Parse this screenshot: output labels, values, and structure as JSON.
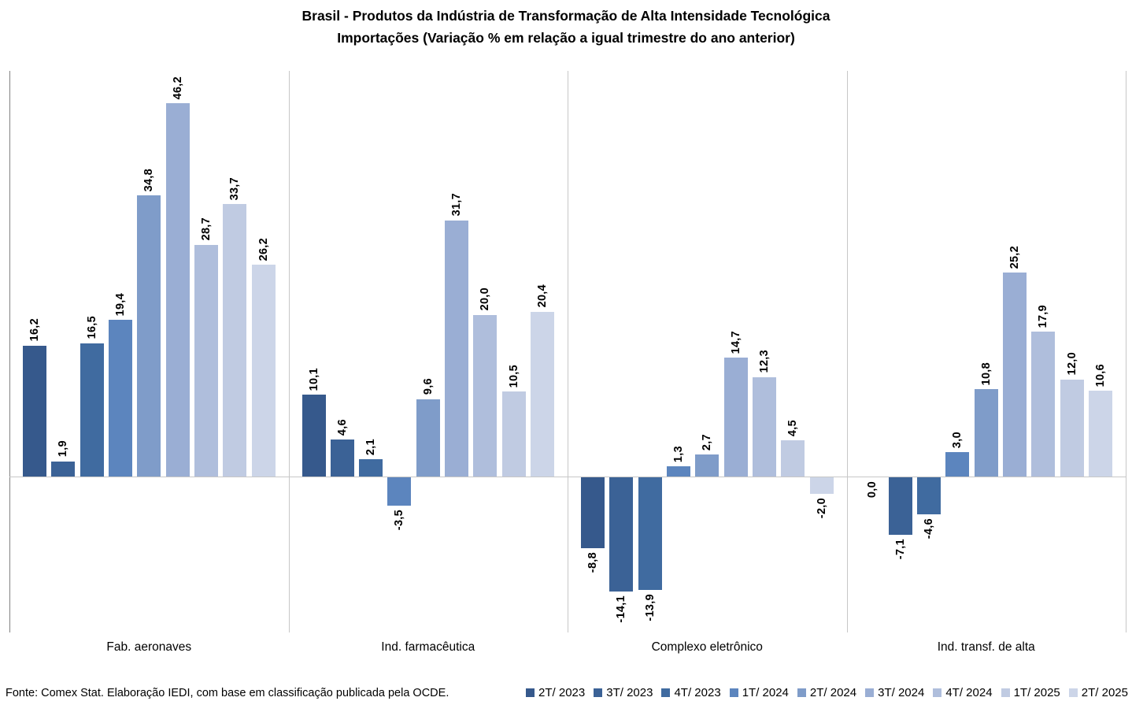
{
  "title": {
    "line1": "Brasil - Produtos da Indústria de Transformação de Alta Intensidade Tecnológica",
    "line2": "Importações (Variação % em relação a igual trimestre do ano anterior)"
  },
  "footer": {
    "source": "Fonte: Comex Stat. Elaboração IEDI, com base em classificação publicada pela OCDE."
  },
  "chart_data": {
    "type": "bar",
    "title": "Brasil - Produtos da Indústria de Transformação de Alta Intensidade Tecnológica",
    "subtitle": "Importações (Variação % em relação a igual trimestre do ano anterior)",
    "categories": [
      "Fab. aeronaves",
      "Ind. farmacêutica",
      "Complexo eletrônico",
      "Ind. transf. de alta"
    ],
    "series": [
      {
        "name": "2T/ 2023",
        "color": "#36598C",
        "values": [
          16.2,
          10.1,
          -8.8,
          0.0
        ]
      },
      {
        "name": "3T/ 2023",
        "color": "#3B6296",
        "values": [
          1.9,
          4.6,
          -14.1,
          -7.1
        ]
      },
      {
        "name": "4T/ 2023",
        "color": "#406BA0",
        "values": [
          16.5,
          2.1,
          -13.9,
          -4.6
        ]
      },
      {
        "name": "1T/ 2024",
        "color": "#5C85BE",
        "values": [
          19.4,
          -3.5,
          1.3,
          3.0
        ]
      },
      {
        "name": "2T/ 2024",
        "color": "#7F9CC9",
        "values": [
          34.8,
          9.6,
          2.7,
          10.8
        ]
      },
      {
        "name": "3T/ 2024",
        "color": "#9AAED4",
        "values": [
          46.2,
          31.7,
          14.7,
          25.2
        ]
      },
      {
        "name": "4T/ 2024",
        "color": "#AFBEDC",
        "values": [
          28.7,
          20.0,
          12.3,
          17.9
        ]
      },
      {
        "name": "1T/ 2025",
        "color": "#C0CBE2",
        "values": [
          33.7,
          10.5,
          4.5,
          12.0
        ]
      },
      {
        "name": "2T/ 2025",
        "color": "#CCD5E8",
        "values": [
          26.2,
          20.4,
          -2.0,
          10.6
        ]
      }
    ],
    "value_labels": "rotated 90°, comma decimal, one decimal place",
    "ylim": [
      -20,
      50
    ],
    "grid": "vertical separators between category groups, zero baseline only",
    "legend_position": "bottom-right",
    "axis_line_color": "#828282",
    "separator_line_color": "#C7C7C7",
    "zero_line_color": "#C7C7C7"
  }
}
